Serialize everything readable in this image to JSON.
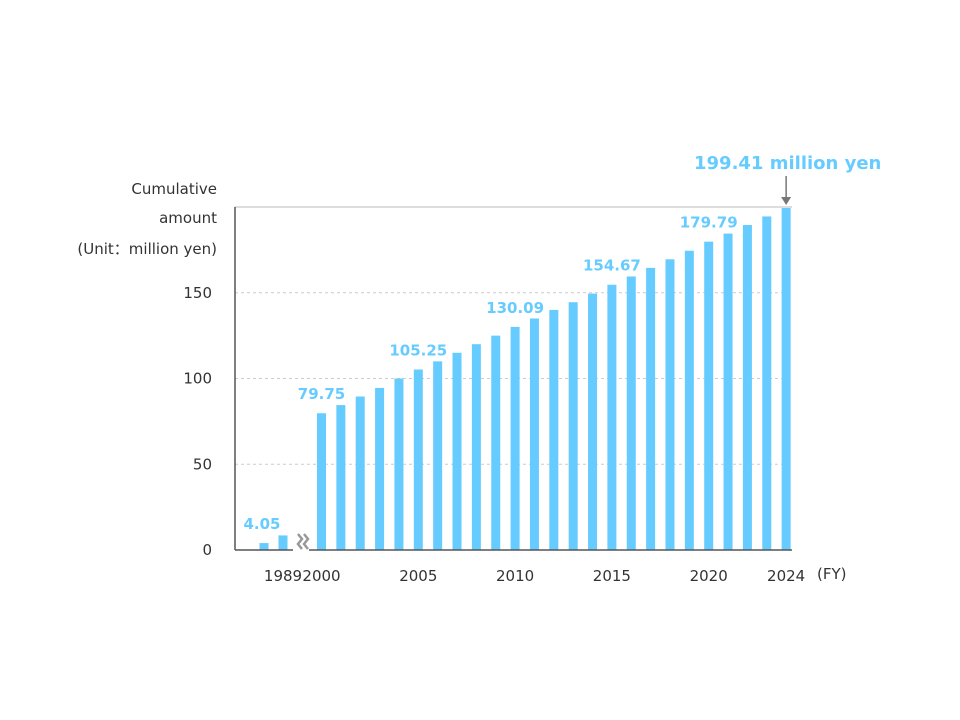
{
  "chart_data": {
    "type": "bar",
    "ylabel": [
      "Cumulative",
      "amount",
      "(Unit：million yen)"
    ],
    "xunit": "(FY)",
    "ylim": [
      0,
      200
    ],
    "yticks": [
      0,
      50,
      100,
      150
    ],
    "grid": true,
    "axis_break_after": "1989",
    "categories": [
      "1988",
      "1989",
      "2000",
      "2001",
      "2002",
      "2003",
      "2004",
      "2005",
      "2006",
      "2007",
      "2008",
      "2009",
      "2010",
      "2011",
      "2012",
      "2013",
      "2014",
      "2015",
      "2016",
      "2017",
      "2018",
      "2019",
      "2020",
      "2021",
      "2022",
      "2023",
      "2024"
    ],
    "xtick_labels": [
      "1989",
      "2000",
      "2005",
      "2010",
      "2015",
      "2020",
      "2024"
    ],
    "values": [
      4.05,
      8.5,
      79.75,
      84.5,
      89.5,
      94.5,
      100,
      105.25,
      110,
      115,
      120,
      125,
      130.09,
      135,
      140,
      144.5,
      149.5,
      154.67,
      159.5,
      164.5,
      169.5,
      174.5,
      179.79,
      184.5,
      189.5,
      194.5,
      199.41
    ],
    "data_labels": [
      {
        "category": "1988",
        "text": "4.05"
      },
      {
        "category": "2000",
        "text": "79.75"
      },
      {
        "category": "2005",
        "text": "105.25"
      },
      {
        "category": "2010",
        "text": "130.09"
      },
      {
        "category": "2015",
        "text": "154.67"
      },
      {
        "category": "2020",
        "text": "179.79"
      }
    ],
    "callout": {
      "category": "2024",
      "text": "199.41 million yen"
    },
    "colors": {
      "bar": "#66ccff",
      "label": "#66ccff",
      "axis": "#555555",
      "grid": "#cccccc",
      "callout_arrow": "#777777",
      "break": "#999999"
    }
  }
}
